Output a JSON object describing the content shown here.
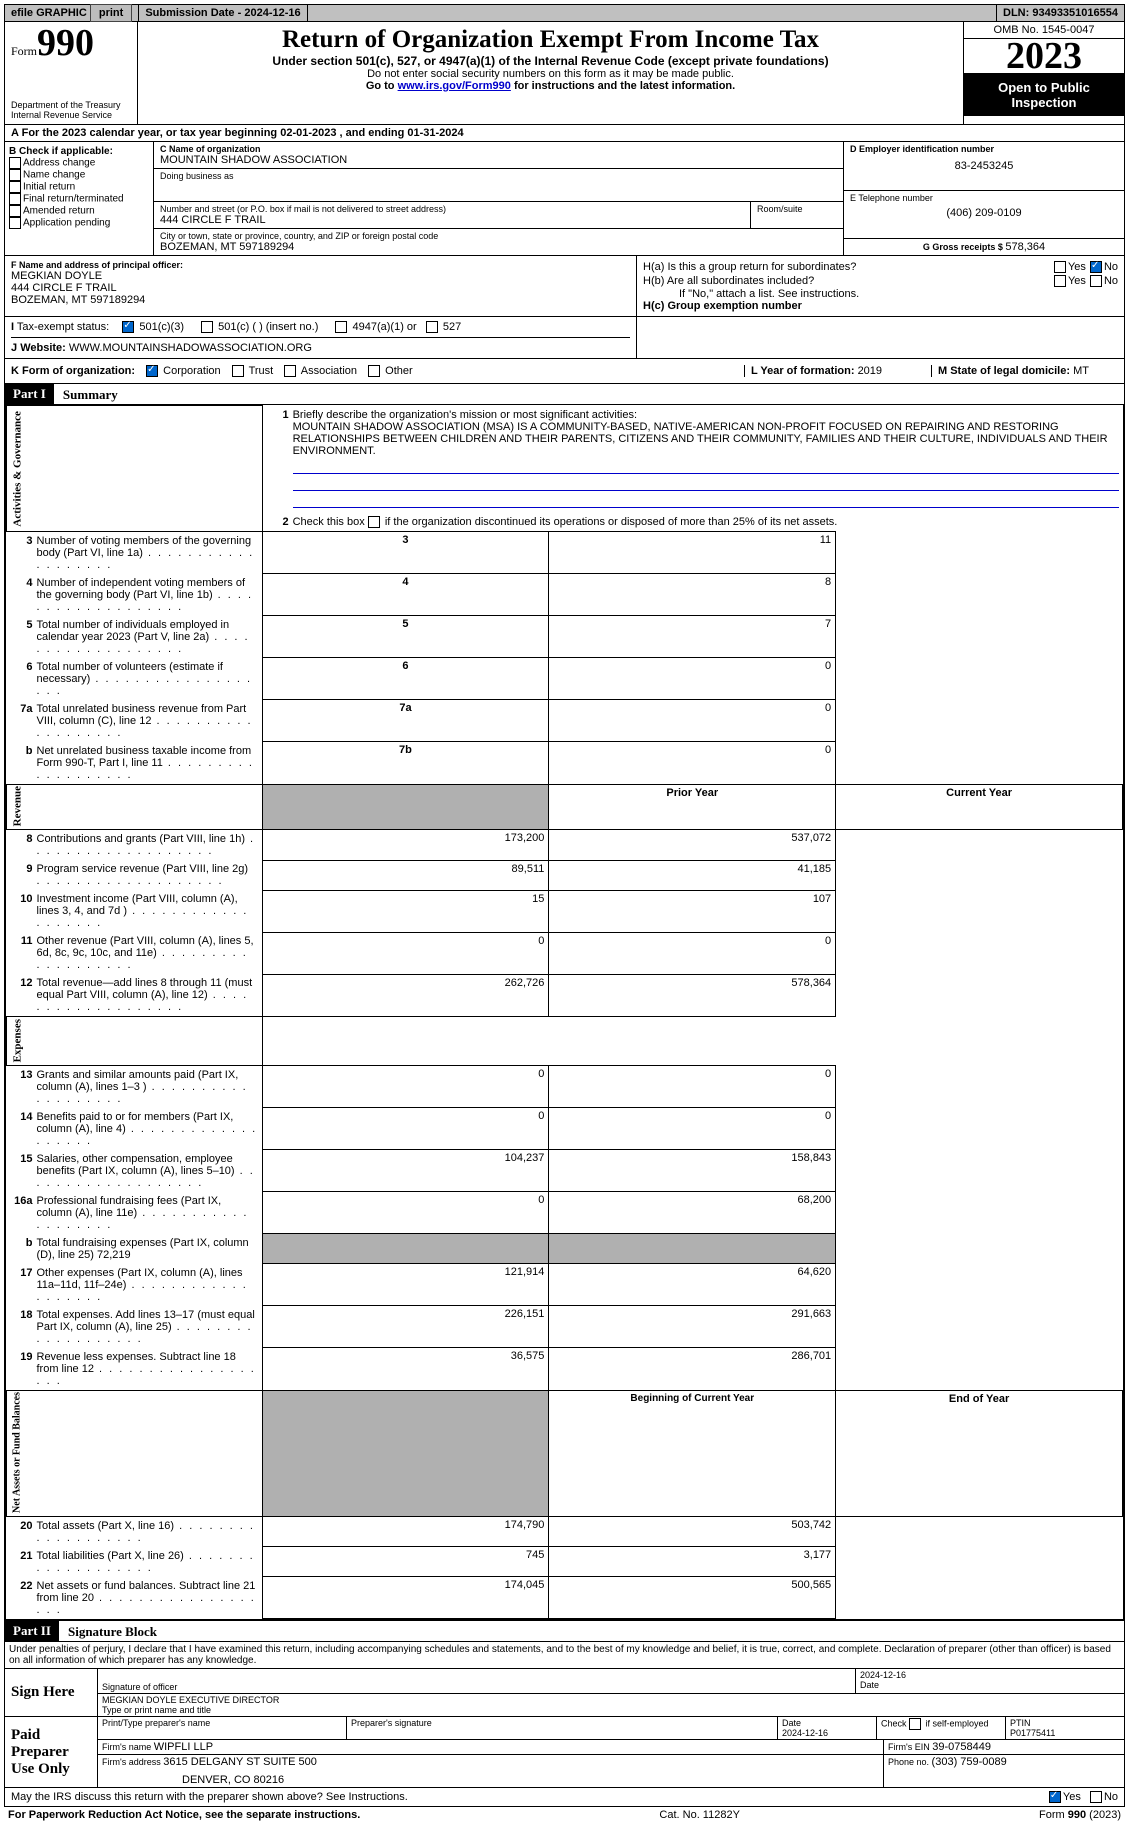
{
  "topbar": {
    "efile": "efile GRAPHIC",
    "print": "print",
    "submission_label": "Submission Date - ",
    "submission_date": "2024-12-16",
    "dln_label": "DLN: ",
    "dln": "93493351016554"
  },
  "header": {
    "form_label": "Form",
    "form_number": "990",
    "title": "Return of Organization Exempt From Income Tax",
    "subtitle": "Under section 501(c), 527, or 4947(a)(1) of the Internal Revenue Code (except private foundations)",
    "warn": "Do not enter social security numbers on this form as it may be made public.",
    "goto_prefix": "Go to ",
    "goto_link": "www.irs.gov/Form990",
    "goto_suffix": " for instructions and the latest information.",
    "dept1": "Department of the Treasury",
    "dept2": "Internal Revenue Service",
    "omb": "OMB No. 1545-0047",
    "year": "2023",
    "open": "Open to Public Inspection"
  },
  "period": {
    "text_a": "For the 2023 calendar year, or tax year beginning ",
    "begin": "02-01-2023",
    "text_b": " , and ending ",
    "end": "01-31-2024"
  },
  "boxB": {
    "label": "B Check if applicable:",
    "items": [
      "Address change",
      "Name change",
      "Initial return",
      "Final return/terminated",
      "Amended return",
      "Application pending"
    ]
  },
  "boxC": {
    "name_label": "C Name of organization",
    "name": "MOUNTAIN SHADOW ASSOCIATION",
    "dba_label": "Doing business as",
    "street_label": "Number and street (or P.O. box if mail is not delivered to street address)",
    "room_label": "Room/suite",
    "street": "444 CIRCLE F TRAIL",
    "city_label": "City or town, state or province, country, and ZIP or foreign postal code",
    "city": "BOZEMAN, MT  597189294"
  },
  "boxD": {
    "label": "D Employer identification number",
    "value": "83-2453245"
  },
  "boxE": {
    "label": "E Telephone number",
    "value": "(406) 209-0109"
  },
  "boxG": {
    "label": "G Gross receipts $ ",
    "value": "578,364"
  },
  "boxF": {
    "label": "F Name and address of principal officer:",
    "name": "MEGKIAN DOYLE",
    "street": "444 CIRCLE F TRAIL",
    "city": "BOZEMAN, MT  597189294"
  },
  "boxH": {
    "a": "H(a)  Is this a group return for subordinates?",
    "b": "H(b)  Are all subordinates included?",
    "b_note": "If \"No,\" attach a list. See instructions.",
    "c": "H(c)  Group exemption number  ",
    "yes": "Yes",
    "no": "No"
  },
  "boxI": {
    "label": "Tax-exempt status:",
    "opts": [
      "501(c)(3)",
      "501(c) (  ) (insert no.)",
      "4947(a)(1) or",
      "527"
    ]
  },
  "boxJ": {
    "label": "Website: ",
    "value": "WWW.MOUNTAINSHADOWASSOCIATION.ORG"
  },
  "boxK": {
    "label": "K Form of organization:",
    "opts": [
      "Corporation",
      "Trust",
      "Association",
      "Other"
    ]
  },
  "boxL": {
    "label": "L Year of formation: ",
    "value": "2019"
  },
  "boxM": {
    "label": "M State of legal domicile: ",
    "value": "MT"
  },
  "part1": {
    "header": "Part I",
    "title": "Summary",
    "q1_label": "Briefly describe the organization's mission or most significant activities:",
    "q1_text": "MOUNTAIN SHADOW ASSOCIATION (MSA) IS A COMMUNITY-BASED, NATIVE-AMERICAN NON-PROFIT FOCUSED ON REPAIRING AND RESTORING RELATIONSHIPS BETWEEN CHILDREN AND THEIR PARENTS, CITIZENS AND THEIR COMMUNITY, FAMILIES AND THEIR CULTURE, INDIVIDUALS AND THEIR ENVIRONMENT.",
    "q2": "Check this box        if the organization discontinued its operations or disposed of more than 25% of its net assets.",
    "governance": "Activities & Governance",
    "revenue": "Revenue",
    "expenses": "Expenses",
    "netassets": "Net Assets or Fund Balances",
    "lines_gov": [
      {
        "n": "3",
        "t": "Number of voting members of the governing body (Part VI, line 1a)",
        "box": "3",
        "v": "11"
      },
      {
        "n": "4",
        "t": "Number of independent voting members of the governing body (Part VI, line 1b)",
        "box": "4",
        "v": "8"
      },
      {
        "n": "5",
        "t": "Total number of individuals employed in calendar year 2023 (Part V, line 2a)",
        "box": "5",
        "v": "7"
      },
      {
        "n": "6",
        "t": "Total number of volunteers (estimate if necessary)",
        "box": "6",
        "v": "0"
      },
      {
        "n": "7a",
        "t": "Total unrelated business revenue from Part VIII, column (C), line 12",
        "box": "7a",
        "v": "0"
      },
      {
        "n": "b",
        "t": "Net unrelated business taxable income from Form 990-T, Part I, line 11",
        "box": "7b",
        "v": "0"
      }
    ],
    "col_headers": {
      "prior": "Prior Year",
      "current": "Current Year"
    },
    "lines_rev": [
      {
        "n": "8",
        "t": "Contributions and grants (Part VIII, line 1h)",
        "p": "173,200",
        "c": "537,072"
      },
      {
        "n": "9",
        "t": "Program service revenue (Part VIII, line 2g)",
        "p": "89,511",
        "c": "41,185"
      },
      {
        "n": "10",
        "t": "Investment income (Part VIII, column (A), lines 3, 4, and 7d )",
        "p": "15",
        "c": "107"
      },
      {
        "n": "11",
        "t": "Other revenue (Part VIII, column (A), lines 5, 6d, 8c, 9c, 10c, and 11e)",
        "p": "0",
        "c": "0"
      },
      {
        "n": "12",
        "t": "Total revenue—add lines 8 through 11 (must equal Part VIII, column (A), line 12)",
        "p": "262,726",
        "c": "578,364"
      }
    ],
    "lines_exp": [
      {
        "n": "13",
        "t": "Grants and similar amounts paid (Part IX, column (A), lines 1–3 )",
        "p": "0",
        "c": "0"
      },
      {
        "n": "14",
        "t": "Benefits paid to or for members (Part IX, column (A), line 4)",
        "p": "0",
        "c": "0"
      },
      {
        "n": "15",
        "t": "Salaries, other compensation, employee benefits (Part IX, column (A), lines 5–10)",
        "p": "104,237",
        "c": "158,843"
      },
      {
        "n": "16a",
        "t": "Professional fundraising fees (Part IX, column (A), line 11e)",
        "p": "0",
        "c": "68,200"
      },
      {
        "n": "b",
        "t": "Total fundraising expenses (Part IX, column (D), line 25) 72,219",
        "p": "",
        "c": "",
        "shaded": true
      },
      {
        "n": "17",
        "t": "Other expenses (Part IX, column (A), lines 11a–11d, 11f–24e)",
        "p": "121,914",
        "c": "64,620"
      },
      {
        "n": "18",
        "t": "Total expenses. Add lines 13–17 (must equal Part IX, column (A), line 25)",
        "p": "226,151",
        "c": "291,663"
      },
      {
        "n": "19",
        "t": "Revenue less expenses. Subtract line 18 from line 12",
        "p": "36,575",
        "c": "286,701"
      }
    ],
    "col_headers2": {
      "begin": "Beginning of Current Year",
      "end": "End of Year"
    },
    "lines_net": [
      {
        "n": "20",
        "t": "Total assets (Part X, line 16)",
        "p": "174,790",
        "c": "503,742"
      },
      {
        "n": "21",
        "t": "Total liabilities (Part X, line 26)",
        "p": "745",
        "c": "3,177"
      },
      {
        "n": "22",
        "t": "Net assets or fund balances. Subtract line 21 from line 20",
        "p": "174,045",
        "c": "500,565"
      }
    ]
  },
  "part2": {
    "header": "Part II",
    "title": "Signature Block",
    "perjury": "Under penalties of perjury, I declare that I have examined this return, including accompanying schedules and statements, and to the best of my knowledge and belief, it is true, correct, and complete. Declaration of preparer (other than officer) is based on all information of which preparer has any knowledge."
  },
  "sign": {
    "here_label": "Sign Here",
    "sig_officer_label": "Signature of officer",
    "date_label": "Date",
    "date": "2024-12-16",
    "officer": "MEGKIAN DOYLE EXECUTIVE DIRECTOR",
    "type_label": "Type or print name and title"
  },
  "preparer": {
    "label": "Paid Preparer Use Only",
    "print_label": "Print/Type preparer's name",
    "sig_label": "Preparer's signature",
    "date_label": "Date",
    "date": "2024-12-16",
    "check_label": "Check         if self-employed",
    "ptin_label": "PTIN",
    "ptin": "P01775411",
    "firm_name_label": "Firm's name   ",
    "firm_name": "WIPFLI LLP",
    "firm_ein_label": "Firm's EIN   ",
    "firm_ein": "39-0758449",
    "firm_addr_label": "Firm's address  ",
    "firm_addr1": "3615 DELGANY ST SUITE 500",
    "firm_addr2": "DENVER, CO  80216",
    "phone_label": "Phone no. ",
    "phone": "(303) 759-0089"
  },
  "discuss": {
    "q": "May the IRS discuss this return with the preparer shown above? See Instructions.",
    "yes": "Yes",
    "no": "No"
  },
  "footer": {
    "left": "For Paperwork Reduction Act Notice, see the separate instructions.",
    "mid": "Cat. No. 11282Y",
    "right_a": "Form ",
    "right_b": "990",
    "right_c": " (2023)"
  }
}
